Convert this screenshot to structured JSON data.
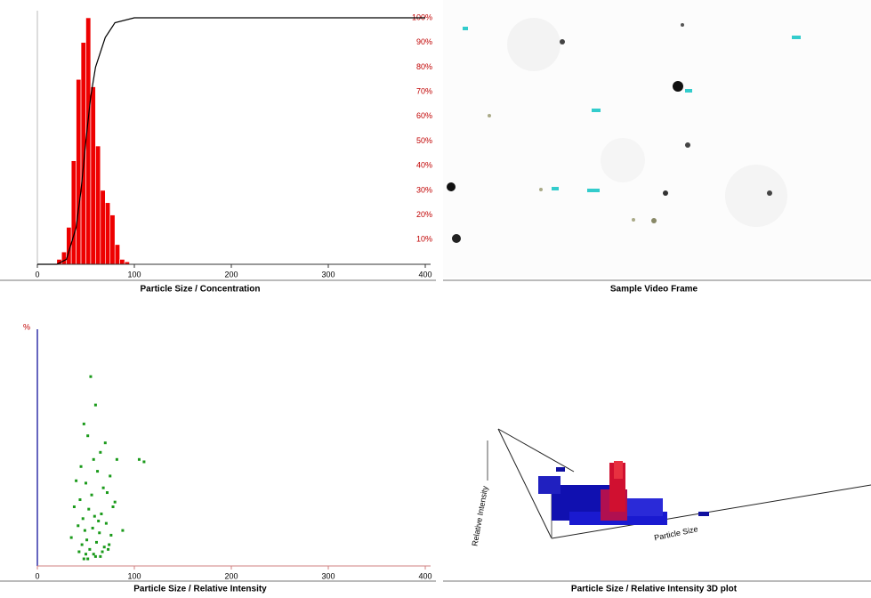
{
  "chart_data": [
    {
      "type": "histogram",
      "caption": "Particle Size / Concentration",
      "bins": [
        20,
        25,
        30,
        35,
        40,
        45,
        50,
        55,
        60,
        65,
        70,
        75,
        80,
        85,
        90,
        95
      ],
      "values": [
        2,
        5,
        15,
        42,
        75,
        90,
        100,
        72,
        48,
        30,
        25,
        20,
        8,
        2,
        1
      ],
      "color": "#ee0000",
      "xlim": [
        0,
        400
      ],
      "xticks": [
        0,
        100,
        200,
        300,
        400
      ],
      "ylim": [
        0,
        100
      ],
      "cumulative_x": [
        0,
        20,
        30,
        40,
        45,
        50,
        55,
        60,
        70,
        80,
        100,
        400
      ],
      "cumulative_values": [
        0,
        0,
        2,
        15,
        30,
        50,
        68,
        80,
        92,
        98,
        100,
        100
      ],
      "cumulative_color": "#000000",
      "y2lim": [
        0,
        100
      ],
      "y2ticks": [
        {
          "value": 10,
          "label": "10%"
        },
        {
          "value": 20,
          "label": "20%"
        },
        {
          "value": 30,
          "label": "30%"
        },
        {
          "value": 40,
          "label": "40%"
        },
        {
          "value": 50,
          "label": "50%"
        },
        {
          "value": 60,
          "label": "60%"
        },
        {
          "value": 70,
          "label": "70%"
        },
        {
          "value": 80,
          "label": "80%"
        },
        {
          "value": 90,
          "label": "90%"
        },
        {
          "value": 100,
          "label": "100%"
        }
      ]
    },
    {
      "type": "scatter",
      "caption": "Particle Size / Relative Intensity",
      "ylabel": "%",
      "color": "#1a9a1a",
      "x": [
        55,
        60,
        48,
        52,
        70,
        65,
        58,
        45,
        62,
        75,
        40,
        50,
        68,
        72,
        56,
        44,
        80,
        38,
        53,
        66,
        59,
        47,
        63,
        71,
        42,
        57,
        49,
        64,
        76,
        35,
        51,
        61,
        46,
        69,
        54,
        73,
        43,
        67,
        58,
        50,
        60,
        65,
        52,
        48,
        74,
        82,
        105,
        110,
        78,
        88
      ],
      "values": [
        80,
        68,
        60,
        55,
        52,
        48,
        45,
        42,
        40,
        38,
        36,
        35,
        33,
        31,
        30,
        28,
        27,
        25,
        24,
        22,
        21,
        20,
        19,
        18,
        17,
        16,
        15,
        14,
        13,
        12,
        11,
        10,
        9,
        8,
        7,
        7,
        6,
        6,
        5,
        5,
        4,
        4,
        3,
        3,
        9,
        45,
        45,
        44,
        25,
        15
      ],
      "xlim": [
        0,
        400
      ],
      "xticks": [
        0,
        100,
        200,
        300,
        400
      ],
      "ylim": [
        0,
        100
      ]
    }
  ],
  "panels": {
    "video_caption": "Sample Video Frame",
    "plot3d_caption": "Particle Size / Relative Intensity 3D plot",
    "plot3d_ylabel": "Relative Intensity",
    "plot3d_xlabel": "Particle Size"
  }
}
